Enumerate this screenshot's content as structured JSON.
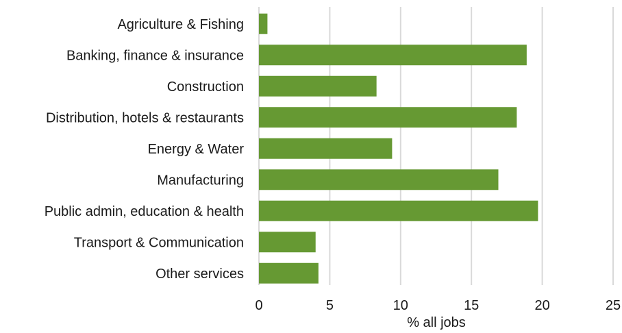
{
  "chart_data": {
    "type": "bar",
    "orientation": "horizontal",
    "categories": [
      "Agriculture & Fishing",
      "Banking, finance & insurance",
      "Construction",
      "Distribution, hotels & restaurants",
      "Energy & Water",
      "Manufacturing",
      "Public admin, education & health",
      "Transport & Communication",
      "Other services"
    ],
    "values": [
      0.6,
      18.9,
      8.3,
      18.2,
      9.4,
      16.9,
      19.7,
      4.0,
      4.2
    ],
    "xlabel": "% all jobs",
    "ylabel": "",
    "xlim": [
      0,
      25
    ],
    "ticks": [
      "0",
      "5",
      "10",
      "15",
      "20",
      "25"
    ],
    "grid": true,
    "bar_color": "#669933"
  }
}
